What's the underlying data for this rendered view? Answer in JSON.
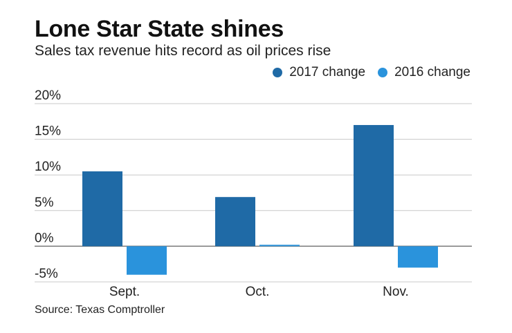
{
  "header": {
    "title": "Lone Star State shines",
    "subtitle": "Sales tax revenue hits record as oil prices rise"
  },
  "footer": {
    "source": "Source: Texas Comptroller"
  },
  "colors": {
    "series_2017": "#1f6aa6",
    "series_2016": "#2a93dc",
    "grid": "#c8c8c8",
    "zero_line": "#777777"
  },
  "chart_data": {
    "type": "bar",
    "title": "Lone Star State shines",
    "subtitle": "Sales tax revenue hits record as oil prices rise",
    "xlabel": "",
    "ylabel": "",
    "categories": [
      "Sept.",
      "Oct.",
      "Nov."
    ],
    "series": [
      {
        "name": "2017 change",
        "values": [
          10.5,
          6.9,
          17.0
        ]
      },
      {
        "name": "2016 change",
        "values": [
          -4.0,
          0.2,
          -3.0
        ]
      }
    ],
    "ylim": [
      -5,
      20
    ],
    "yticks": [
      20,
      15,
      10,
      5,
      0,
      -5
    ],
    "ytick_labels": [
      "20%",
      "15%",
      "10%",
      "5%",
      "0%",
      "-5%"
    ],
    "grid": true,
    "legend_position": "top-right"
  }
}
